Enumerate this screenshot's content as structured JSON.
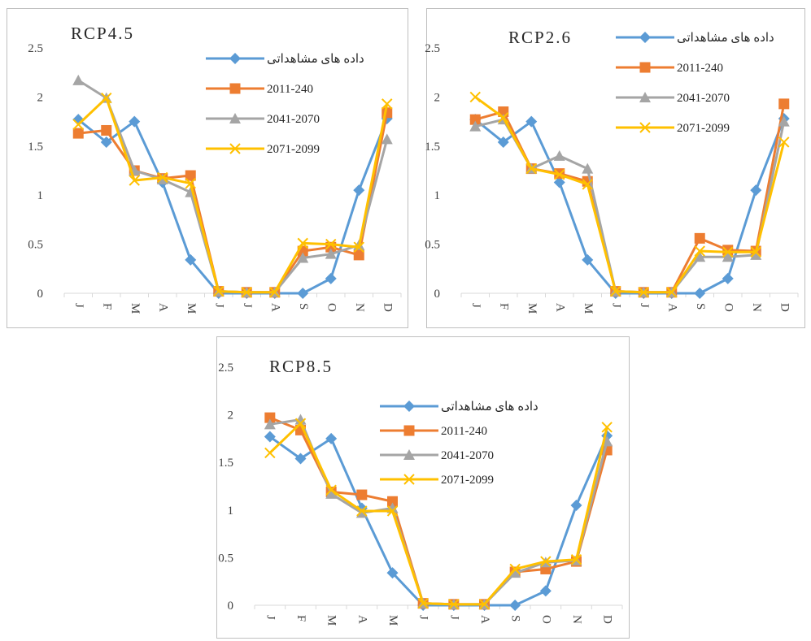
{
  "chart_data": [
    {
      "type": "line",
      "title": "RCP4.5",
      "categories": [
        "J",
        "F",
        "M",
        "A",
        "M",
        "J",
        "J",
        "A",
        "S",
        "O",
        "N",
        "D"
      ],
      "yticks": [
        "0",
        "0.5",
        "1",
        "1.5",
        "2",
        "2.5"
      ],
      "ylim": [
        0,
        2.5
      ],
      "grid": false,
      "legend": "top-right",
      "series": [
        {
          "name": "داده های مشاهداتی",
          "color": "#5B9BD5",
          "marker": "diamond",
          "values": [
            1.77,
            1.54,
            1.75,
            1.13,
            0.34,
            0.0,
            0.0,
            0.0,
            0.0,
            0.15,
            1.05,
            1.78
          ]
        },
        {
          "name": "2011-240",
          "color": "#ED7D31",
          "marker": "square",
          "values": [
            1.63,
            1.66,
            1.25,
            1.17,
            1.2,
            0.02,
            0.01,
            0.01,
            0.43,
            0.47,
            0.39,
            1.84
          ]
        },
        {
          "name": "2041-2070",
          "color": "#A5A5A5",
          "marker": "triangle",
          "values": [
            2.17,
            1.99,
            1.25,
            1.16,
            1.03,
            0.02,
            0.01,
            0.01,
            0.36,
            0.4,
            0.49,
            1.57
          ]
        },
        {
          "name": "2071-2099",
          "color": "#FFC000",
          "marker": "x",
          "values": [
            1.72,
            1.99,
            1.15,
            1.18,
            1.12,
            0.02,
            0.01,
            0.01,
            0.51,
            0.5,
            0.47,
            1.93
          ]
        }
      ]
    },
    {
      "type": "line",
      "title": "RCP2.6",
      "categories": [
        "J",
        "F",
        "M",
        "A",
        "M",
        "J",
        "J",
        "A",
        "S",
        "O",
        "N",
        "D"
      ],
      "yticks": [
        "0",
        "0.5",
        "1",
        "1.5",
        "2",
        "2.5"
      ],
      "ylim": [
        0,
        2.5
      ],
      "grid": false,
      "legend": "top-right",
      "series": [
        {
          "name": "داده های مشاهداتی",
          "color": "#5B9BD5",
          "marker": "diamond",
          "values": [
            1.77,
            1.54,
            1.75,
            1.13,
            0.34,
            0.0,
            0.0,
            0.0,
            0.0,
            0.15,
            1.05,
            1.78
          ]
        },
        {
          "name": "2011-240",
          "color": "#ED7D31",
          "marker": "square",
          "values": [
            1.77,
            1.85,
            1.27,
            1.22,
            1.14,
            0.02,
            0.01,
            0.01,
            0.56,
            0.44,
            0.43,
            1.93
          ]
        },
        {
          "name": "2041-2070",
          "color": "#A5A5A5",
          "marker": "triangle",
          "values": [
            1.7,
            1.77,
            1.27,
            1.4,
            1.27,
            0.02,
            0.01,
            0.01,
            0.37,
            0.37,
            0.39,
            1.75
          ]
        },
        {
          "name": "2071-2099",
          "color": "#FFC000",
          "marker": "x",
          "values": [
            2.0,
            1.79,
            1.27,
            1.21,
            1.11,
            0.02,
            0.01,
            0.01,
            0.43,
            0.42,
            0.42,
            1.54
          ]
        }
      ]
    },
    {
      "type": "line",
      "title": "RCP8.5",
      "categories": [
        "J",
        "F",
        "M",
        "A",
        "M",
        "J",
        "J",
        "A",
        "S",
        "O",
        "N",
        "D"
      ],
      "yticks": [
        "0",
        "0.5",
        "1",
        "1.5",
        "2",
        "2.5"
      ],
      "ylim": [
        0,
        2.5
      ],
      "grid": false,
      "legend": "top-right",
      "series": [
        {
          "name": "داده های مشاهداتی",
          "color": "#5B9BD5",
          "marker": "diamond",
          "values": [
            1.77,
            1.54,
            1.75,
            1.02,
            0.34,
            0.0,
            0.0,
            0.0,
            0.0,
            0.15,
            1.05,
            1.78
          ]
        },
        {
          "name": "2011-240",
          "color": "#ED7D31",
          "marker": "square",
          "values": [
            1.97,
            1.84,
            1.19,
            1.16,
            1.09,
            0.02,
            0.01,
            0.01,
            0.35,
            0.38,
            0.46,
            1.63
          ]
        },
        {
          "name": "2041-2070",
          "color": "#A5A5A5",
          "marker": "triangle",
          "values": [
            1.9,
            1.95,
            1.17,
            0.97,
            1.02,
            0.02,
            0.01,
            0.01,
            0.34,
            0.45,
            0.47,
            1.72
          ]
        },
        {
          "name": "2071-2099",
          "color": "#FFC000",
          "marker": "x",
          "values": [
            1.6,
            1.91,
            1.21,
            0.99,
            0.99,
            0.02,
            0.01,
            0.01,
            0.38,
            0.46,
            0.48,
            1.87
          ]
        }
      ]
    }
  ]
}
